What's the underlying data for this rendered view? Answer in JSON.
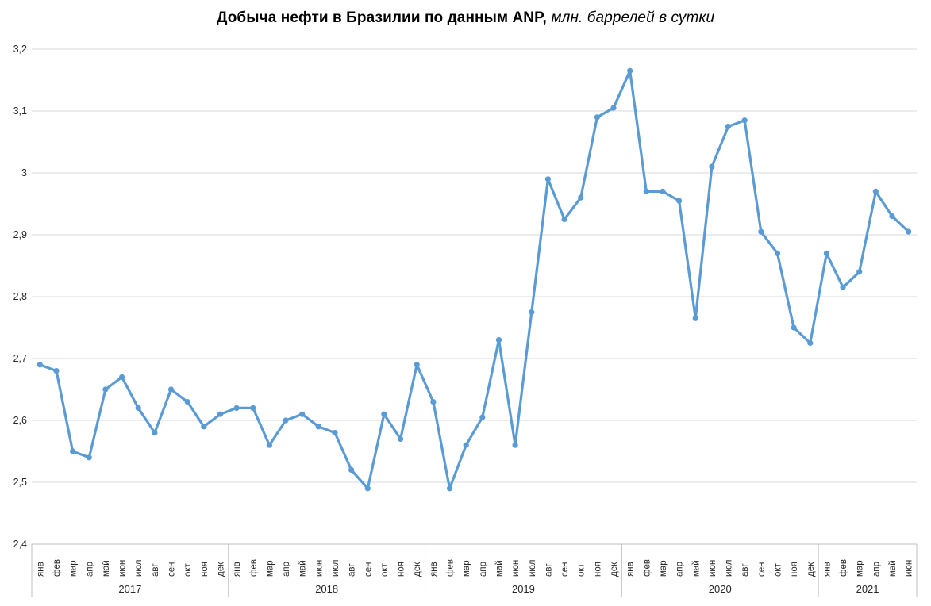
{
  "title": {
    "bold": "Добыча нефти в Бразилии по данным ANP,",
    "italic": "млн. баррелей в сутки"
  },
  "colors": {
    "line": "#5B9BD5",
    "marker": "#5B9BD5",
    "gridline": "#D9D9D9",
    "axis_line": "#BFBFBF",
    "axis_text": "#262626",
    "title_text": "#000000",
    "background": "#FFFFFF"
  },
  "chart_data": {
    "type": "line",
    "title": "Добыча нефти в Бразилии по данным ANP, млн. баррелей в сутки",
    "xlabel": "",
    "ylabel": "",
    "ylim": [
      2.4,
      3.2
    ],
    "grid": true,
    "legend": "none",
    "marker_style": "circle",
    "y_ticks": {
      "values": [
        2.4,
        2.5,
        2.6,
        2.7,
        2.8,
        2.9,
        3.0,
        3.1,
        3.2
      ],
      "labels": [
        "2,4",
        "2,5",
        "2,6",
        "2,7",
        "2,8",
        "2,9",
        "3",
        "3,1",
        "3,2"
      ]
    },
    "groups": [
      {
        "year": "2017",
        "months": [
          "янв",
          "фев",
          "мар",
          "апр",
          "май",
          "июн",
          "июл",
          "авг",
          "сен",
          "окт",
          "ноя",
          "дек"
        ],
        "values": [
          2.69,
          2.68,
          2.55,
          2.54,
          2.65,
          2.67,
          2.62,
          2.58,
          2.65,
          2.63,
          2.59,
          2.61
        ]
      },
      {
        "year": "2018",
        "months": [
          "янв",
          "фев",
          "мар",
          "апр",
          "май",
          "июн",
          "июл",
          "авг",
          "сен",
          "окт",
          "ноя",
          "дек"
        ],
        "values": [
          2.62,
          2.62,
          2.56,
          2.6,
          2.61,
          2.59,
          2.58,
          2.52,
          2.49,
          2.61,
          2.57,
          2.69
        ]
      },
      {
        "year": "2019",
        "months": [
          "янв",
          "фев",
          "мар",
          "апр",
          "май",
          "июн",
          "июл",
          "авг",
          "сен",
          "окт",
          "ноя",
          "дек"
        ],
        "values": [
          2.63,
          2.49,
          2.56,
          2.605,
          2.73,
          2.56,
          2.775,
          2.99,
          2.925,
          2.96,
          3.09,
          3.105
        ]
      },
      {
        "year": "2020",
        "months": [
          "янв",
          "фев",
          "мар",
          "апр",
          "май",
          "июн",
          "июл",
          "авг",
          "сен",
          "окт",
          "ноя",
          "дек"
        ],
        "values": [
          3.165,
          2.97,
          2.97,
          2.955,
          2.765,
          3.01,
          3.075,
          3.085,
          2.905,
          2.87,
          2.75,
          2.725
        ]
      },
      {
        "year": "2021",
        "months": [
          "янв",
          "фев",
          "мар",
          "апр",
          "май",
          "июн"
        ],
        "values": [
          2.87,
          2.815,
          2.84,
          2.97,
          2.93,
          2.905
        ]
      }
    ]
  }
}
